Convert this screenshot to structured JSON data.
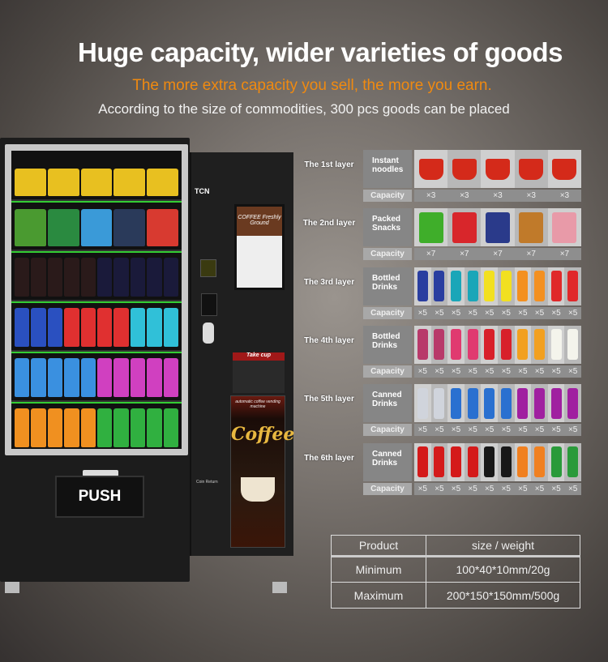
{
  "header": {
    "title": "Huge capacity, wider varieties of goods",
    "subtitle": "The more extra capacity you sell, the more you earn.",
    "note": "According to the size of commodities, 300 pcs goods can be placed"
  },
  "colors": {
    "accent": "#f08a10"
  },
  "machine": {
    "brand": "TCN",
    "push_label": "PUSH",
    "screen_text": "COFFEE Freshly Ground",
    "take_cup": "Take cup",
    "banner_small": "automatic coffee vending machine",
    "banner_word": "Coffee",
    "coin_return": "Coin Return",
    "shelves": [
      {
        "colors": [
          "#e8c020",
          "#e8c020",
          "#e8c020",
          "#e8c020",
          "#e8c020"
        ]
      },
      {
        "colors": [
          "#4a9a30",
          "#2a8a40",
          "#3a9ad8",
          "#2a3a5a",
          "#d83a30"
        ]
      },
      {
        "colors": [
          "#2a1a1a",
          "#2a1a1a",
          "#2a1a1a",
          "#2a1a1a",
          "#2a1a1a",
          "#1a1a3a",
          "#1a1a3a",
          "#1a1a3a",
          "#1a1a3a",
          "#1a1a3a"
        ]
      },
      {
        "colors": [
          "#2a50c0",
          "#2a50c0",
          "#2a50c0",
          "#e03030",
          "#e03030",
          "#e03030",
          "#e03030",
          "#30c0d8",
          "#30c0d8",
          "#30c0d8"
        ]
      },
      {
        "colors": [
          "#3a90e0",
          "#3a90e0",
          "#3a90e0",
          "#3a90e0",
          "#3a90e0",
          "#d040c0",
          "#d040c0",
          "#d040c0",
          "#d040c0",
          "#d040c0"
        ]
      },
      {
        "colors": [
          "#f09020",
          "#f09020",
          "#f09020",
          "#f09020",
          "#f09020",
          "#30b040",
          "#30b040",
          "#30b040",
          "#30b040",
          "#30b040"
        ]
      }
    ]
  },
  "layers": [
    {
      "label": "The 1st layer",
      "category": "Instant noodles",
      "capacity_label": "Capacity",
      "capacity": [
        "×3",
        "×3",
        "×3",
        "×3",
        "×3"
      ],
      "colors": [
        "#d42a1a",
        "#d42a1a",
        "#d42a1a",
        "#d42a1a",
        "#d42a1a"
      ]
    },
    {
      "label": "The 2nd layer",
      "category": "Packed Snacks",
      "capacity_label": "Capacity",
      "capacity": [
        "×7",
        "×7",
        "×7",
        "×7",
        "×7"
      ],
      "colors": [
        "#3fae2a",
        "#d8262b",
        "#2a3a8a",
        "#c07a2a",
        "#e89aa8"
      ]
    },
    {
      "label": "The 3rd layer",
      "category": "Bottled Drinks",
      "capacity_label": "Capacity",
      "capacity": [
        "×5",
        "×5",
        "×5",
        "×5",
        "×5",
        "×5",
        "×5",
        "×5",
        "×5",
        "×5"
      ],
      "colors": [
        "#2a3ea0",
        "#2a3ea0",
        "#1aa6b8",
        "#1aa6b8",
        "#f2e020",
        "#f2e020",
        "#f39020",
        "#f39020",
        "#e0282a",
        "#e0282a"
      ]
    },
    {
      "label": "The 4th layer",
      "category": "Bottled Drinks",
      "capacity_label": "Capacity",
      "capacity": [
        "×5",
        "×5",
        "×5",
        "×5",
        "×5",
        "×5",
        "×5",
        "×5",
        "×5",
        "×5"
      ],
      "colors": [
        "#b83a6a",
        "#b83a6a",
        "#e03a70",
        "#e03a70",
        "#d8202a",
        "#d8202a",
        "#f2a020",
        "#f2a020",
        "#f4f4ec",
        "#f4f4ec"
      ]
    },
    {
      "label": "The 5th layer",
      "category": "Canned Drinks",
      "capacity_label": "Capacity",
      "capacity": [
        "×5",
        "×5",
        "×5",
        "×5",
        "×5",
        "×5",
        "×5",
        "×5",
        "×5",
        "×5"
      ],
      "colors": [
        "#d0d4dc",
        "#d0d4dc",
        "#2a70d0",
        "#2a70d0",
        "#2a70d0",
        "#2a70d0",
        "#a020a0",
        "#a020a0",
        "#a020a0",
        "#a020a0"
      ]
    },
    {
      "label": "The 6th layer",
      "category": "Canned Drinks",
      "capacity_label": "Capacity",
      "capacity": [
        "×5",
        "×5",
        "×5",
        "×5",
        "×5",
        "×5",
        "×5",
        "×5",
        "×5",
        "×5"
      ],
      "colors": [
        "#d41a1a",
        "#d41a1a",
        "#d41a1a",
        "#d41a1a",
        "#181818",
        "#181818",
        "#f08020",
        "#f08020",
        "#2a9a3a",
        "#2a9a3a"
      ]
    }
  ],
  "spec_table": {
    "headers": [
      "Product",
      "size / weight"
    ],
    "rows": [
      [
        "Minimum",
        "100*40*10mm/20g"
      ],
      [
        "Maximum",
        "200*150*150mm/500g"
      ]
    ]
  }
}
